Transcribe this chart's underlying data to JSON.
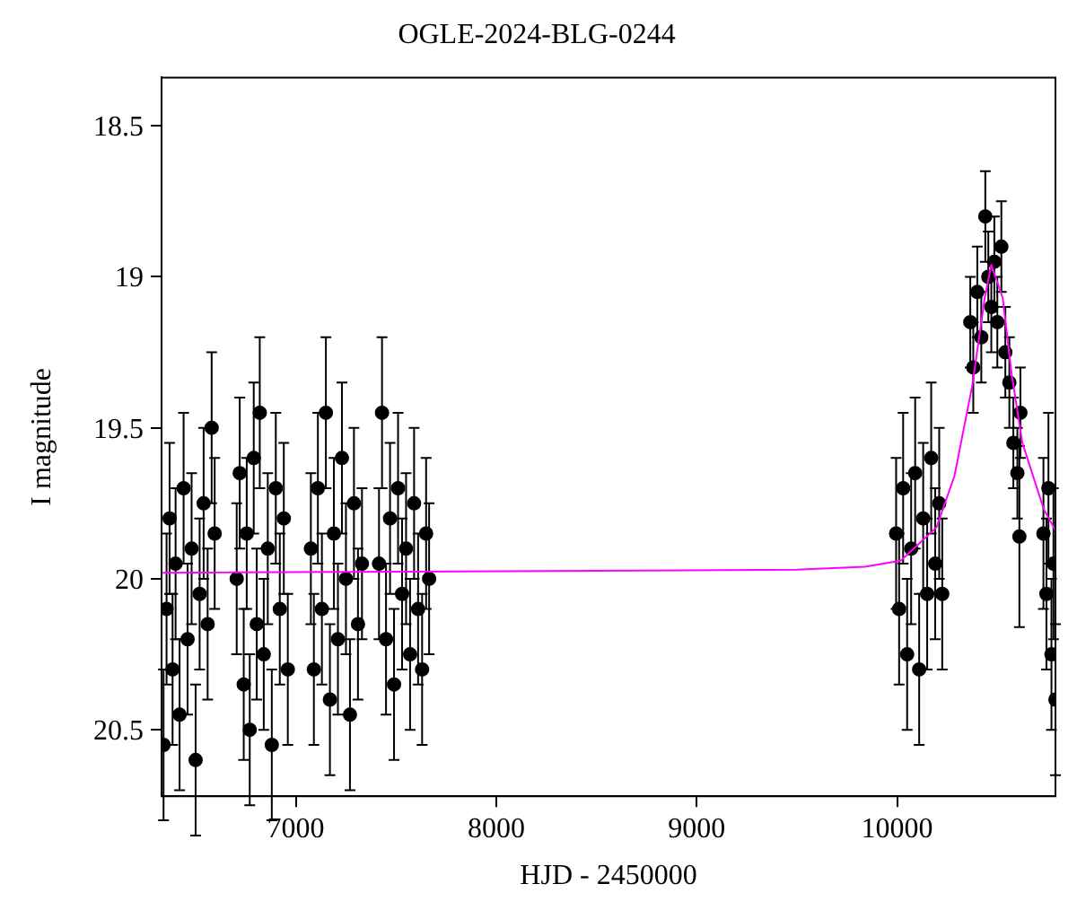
{
  "chart_data": {
    "type": "scatter",
    "title": "OGLE-2024-BLG-0244",
    "xlabel": "HJD - 2450000",
    "ylabel": "I magnitude",
    "xlim": [
      6330,
      10790
    ],
    "xticks": [
      7000,
      8000,
      9000,
      10000
    ],
    "ylim": [
      20.72,
      18.34
    ],
    "yticks": [
      18.5,
      19,
      19.5,
      20,
      20.5
    ],
    "grid": false,
    "legend": false,
    "marker": "circle",
    "series": [
      {
        "color": "#000000",
        "x": [
          6340,
          6355,
          6370,
          6385,
          6400,
          6420,
          6440,
          6460,
          6480,
          6500,
          6520,
          6540,
          6560,
          6580,
          6595,
          6705,
          6720,
          6740,
          6755,
          6770,
          6790,
          6805,
          6820,
          6840,
          6860,
          6880,
          6900,
          6920,
          6940,
          6960,
          7075,
          7090,
          7110,
          7130,
          7150,
          7170,
          7190,
          7210,
          7230,
          7250,
          7270,
          7290,
          7310,
          7330,
          7415,
          7430,
          7450,
          7470,
          7490,
          7510,
          7530,
          7550,
          7570,
          7590,
          7610,
          7630,
          7650,
          7665,
          9995,
          10010,
          10030,
          10050,
          10070,
          10090,
          10110,
          10130,
          10150,
          10170,
          10190,
          10210,
          10225,
          10365,
          10380,
          10400,
          10420,
          10440,
          10455,
          10470,
          10485,
          10500,
          10520,
          10540,
          10560,
          10580,
          10600,
          10610,
          10615,
          10730,
          10745,
          10755,
          10770,
          10780,
          10790
        ],
        "values": [
          20.55,
          20.1,
          19.8,
          20.3,
          19.95,
          20.45,
          19.7,
          20.2,
          19.9,
          20.6,
          20.05,
          19.75,
          20.15,
          19.5,
          19.85,
          20.0,
          19.65,
          20.35,
          19.85,
          20.5,
          19.6,
          20.15,
          19.45,
          20.25,
          19.9,
          20.55,
          19.7,
          20.1,
          19.8,
          20.3,
          19.9,
          20.3,
          19.7,
          20.1,
          19.45,
          20.4,
          19.85,
          20.2,
          19.6,
          20.0,
          20.45,
          19.75,
          20.15,
          19.95,
          19.95,
          19.45,
          20.2,
          19.8,
          20.35,
          19.7,
          20.05,
          19.9,
          20.25,
          19.75,
          20.1,
          20.3,
          19.85,
          20.0,
          19.85,
          20.1,
          19.7,
          20.25,
          19.9,
          19.65,
          20.3,
          19.8,
          20.05,
          19.6,
          19.95,
          19.75,
          20.05,
          19.15,
          19.3,
          19.05,
          19.2,
          18.8,
          19.0,
          19.1,
          18.95,
          19.15,
          18.9,
          19.25,
          19.35,
          19.55,
          19.65,
          19.86,
          19.45,
          19.85,
          20.05,
          19.7,
          20.25,
          19.95,
          20.4
        ],
        "errors": [
          0.25,
          0.25,
          0.25,
          0.25,
          0.25,
          0.25,
          0.25,
          0.25,
          0.25,
          0.25,
          0.25,
          0.25,
          0.25,
          0.25,
          0.25,
          0.25,
          0.25,
          0.25,
          0.25,
          0.25,
          0.25,
          0.25,
          0.25,
          0.25,
          0.25,
          0.25,
          0.25,
          0.25,
          0.25,
          0.25,
          0.25,
          0.25,
          0.25,
          0.25,
          0.25,
          0.25,
          0.25,
          0.25,
          0.25,
          0.25,
          0.25,
          0.25,
          0.25,
          0.25,
          0.25,
          0.25,
          0.25,
          0.25,
          0.25,
          0.25,
          0.25,
          0.25,
          0.25,
          0.25,
          0.25,
          0.25,
          0.25,
          0.25,
          0.25,
          0.25,
          0.25,
          0.25,
          0.25,
          0.25,
          0.25,
          0.25,
          0.25,
          0.25,
          0.25,
          0.25,
          0.25,
          0.15,
          0.15,
          0.15,
          0.15,
          0.15,
          0.15,
          0.15,
          0.15,
          0.15,
          0.15,
          0.15,
          0.15,
          0.15,
          0.15,
          0.3,
          0.15,
          0.25,
          0.25,
          0.25,
          0.25,
          0.25,
          0.25
        ]
      },
      {
        "type": "line",
        "color": "#ff00ff",
        "marker": "none",
        "x": [
          6330,
          9500,
          9839,
          10018,
          10196,
          10286,
          10375,
          10437,
          10470,
          10527,
          10571,
          10625,
          10732,
          10790
        ],
        "values": [
          19.98,
          19.97,
          19.96,
          19.94,
          19.83,
          19.66,
          19.36,
          19.07,
          18.96,
          19.07,
          19.32,
          19.55,
          19.77,
          19.84
        ]
      }
    ]
  }
}
